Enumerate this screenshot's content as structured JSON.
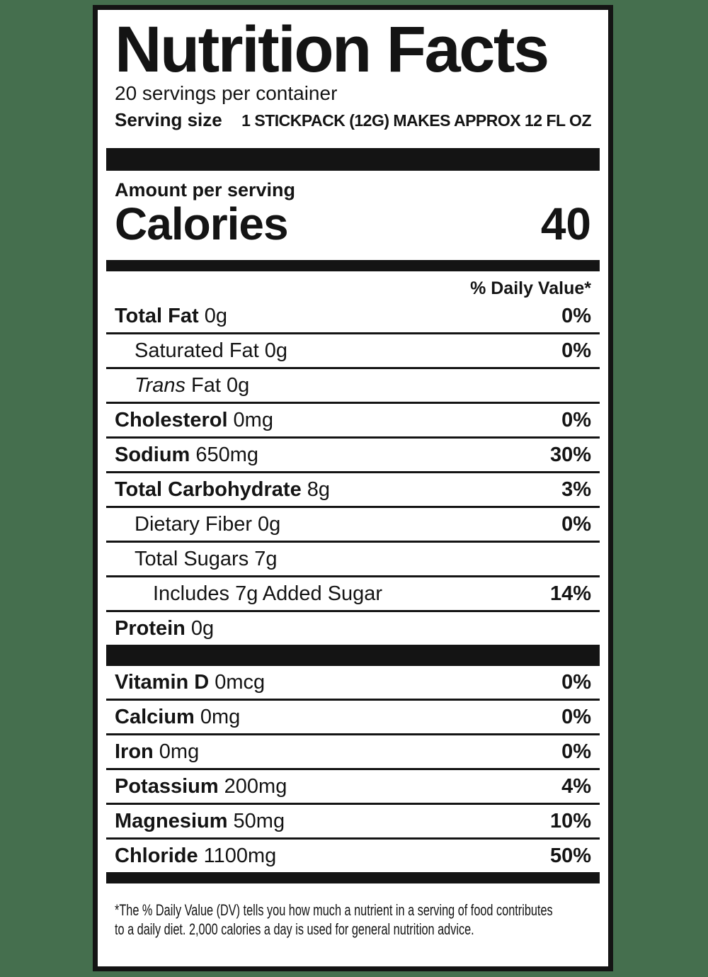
{
  "page": {
    "background_color": "#456F4E",
    "card_background": "#FFFFFF",
    "ink_color": "#141414"
  },
  "header": {
    "title": "Nutrition Facts",
    "servings_per_container": "20 servings per container",
    "serving_size_label": "Serving size",
    "serving_size_value": "1 STICKPACK (12G) MAKES APPROX 12 FL OZ"
  },
  "calories": {
    "amount_per_serving": "Amount per serving",
    "label": "Calories",
    "value": "40"
  },
  "daily_value_header": "% Daily Value*",
  "nutrients": [
    {
      "name": "Total Fat",
      "amount": "0g",
      "dv": "0%",
      "indent": 0,
      "bold": true,
      "italic": false
    },
    {
      "name": "Saturated Fat",
      "amount": "0g",
      "dv": "0%",
      "indent": 1,
      "bold": false,
      "italic": false
    },
    {
      "name": "Trans",
      "amount": "Fat 0g",
      "dv": "",
      "indent": 1,
      "bold": false,
      "italic": true
    },
    {
      "name": "Cholesterol",
      "amount": "0mg",
      "dv": "0%",
      "indent": 0,
      "bold": true,
      "italic": false
    },
    {
      "name": "Sodium",
      "amount": "650mg",
      "dv": "30%",
      "indent": 0,
      "bold": true,
      "italic": false
    },
    {
      "name": "Total Carbohydrate",
      "amount": "8g",
      "dv": "3%",
      "indent": 0,
      "bold": true,
      "italic": false
    },
    {
      "name": "Dietary Fiber",
      "amount": "0g",
      "dv": "0%",
      "indent": 1,
      "bold": false,
      "italic": false
    },
    {
      "name": "Total Sugars",
      "amount": "7g",
      "dv": "",
      "indent": 1,
      "bold": false,
      "italic": false
    },
    {
      "name": "Includes 7g Added Sugar",
      "amount": "",
      "dv": "14%",
      "indent": 2,
      "bold": false,
      "italic": false
    },
    {
      "name": "Protein",
      "amount": "0g",
      "dv": "",
      "indent": 0,
      "bold": true,
      "italic": false
    }
  ],
  "minerals": [
    {
      "name": "Vitamin D",
      "amount": "0mcg",
      "dv": "0%",
      "indent": 0,
      "bold": true,
      "italic": false
    },
    {
      "name": "Calcium",
      "amount": "0mg",
      "dv": "0%",
      "indent": 0,
      "bold": true,
      "italic": false
    },
    {
      "name": "Iron",
      "amount": "0mg",
      "dv": "0%",
      "indent": 0,
      "bold": true,
      "italic": false
    },
    {
      "name": "Potassium",
      "amount": "200mg",
      "dv": "4%",
      "indent": 0,
      "bold": true,
      "italic": false
    },
    {
      "name": "Magnesium",
      "amount": "50mg",
      "dv": "10%",
      "indent": 0,
      "bold": true,
      "italic": false
    },
    {
      "name": "Chloride",
      "amount": "1100mg",
      "dv": "50%",
      "indent": 0,
      "bold": true,
      "italic": false
    }
  ],
  "footnote": {
    "line1": "*The % Daily Value (DV) tells you how much a nutrient in a serving of food contributes",
    "line2": "to a daily diet. 2,000 calories a day is used for general nutrition advice."
  }
}
